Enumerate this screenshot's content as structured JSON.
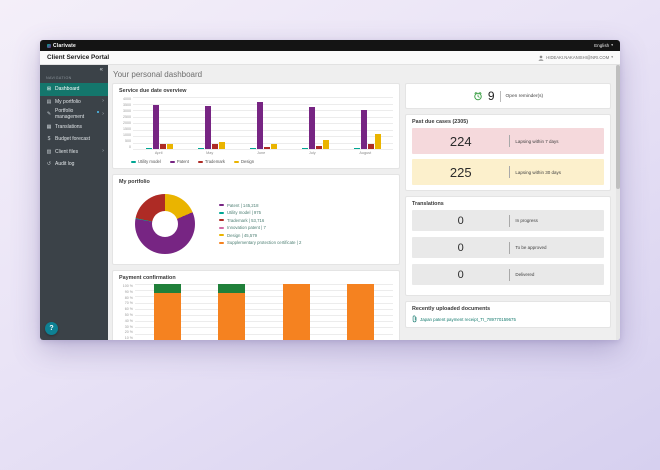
{
  "topbar": {
    "brand": "Clarivate",
    "language": "English"
  },
  "header": {
    "title": "Client Service Portal",
    "user_email": "HIDEAKI.NAKANISHI@NRI.COM"
  },
  "sidebar": {
    "section_label": "NAVIGATION",
    "collapse_icon": "«",
    "help_label": "?",
    "items": [
      {
        "label": "Dashboard",
        "icon": "dashboard-icon",
        "glyph": "⊞",
        "active": true,
        "chevron": false,
        "badge": false
      },
      {
        "label": "My portfolio",
        "icon": "portfolio-icon",
        "glyph": "▤",
        "active": false,
        "chevron": true,
        "badge": false
      },
      {
        "label": "Portfolio management",
        "icon": "management-icon",
        "glyph": "✎",
        "active": false,
        "chevron": true,
        "badge": true
      },
      {
        "label": "Translations",
        "icon": "translations-icon",
        "glyph": "▦",
        "active": false,
        "chevron": false,
        "badge": false
      },
      {
        "label": "Budget forecast",
        "icon": "budget-icon",
        "glyph": "$",
        "active": false,
        "chevron": false,
        "badge": false
      },
      {
        "label": "Client files",
        "icon": "files-icon",
        "glyph": "▧",
        "active": false,
        "chevron": true,
        "badge": false
      },
      {
        "label": "Audit log",
        "icon": "audit-icon",
        "glyph": "↺",
        "active": false,
        "chevron": false,
        "badge": false
      }
    ]
  },
  "main": {
    "page_title": "Your personal dashboard"
  },
  "right_panel": {
    "reminders": {
      "count": "9",
      "label": "Open reminder(s)"
    },
    "past_due": {
      "title": "Past due cases (2305)",
      "items": [
        {
          "value": "224",
          "label": "Lapsing within 7 days",
          "bg": "#f5d9dc"
        },
        {
          "value": "225",
          "label": "Lapsing within 30 days",
          "bg": "#fcf0cc"
        }
      ]
    },
    "translations": {
      "title": "Translations",
      "items": [
        {
          "value": "0",
          "label": "In progress",
          "bg": "#e9e9e9"
        },
        {
          "value": "0",
          "label": "To be approved",
          "bg": "#e9e9e9"
        },
        {
          "value": "0",
          "label": "Delivered",
          "bg": "#e9e9e9"
        }
      ]
    },
    "documents": {
      "title": "Recently uploaded documents",
      "link": "Japan patent payment receipt_TI_789770159675"
    }
  },
  "colors": {
    "brand_purple": "#772583",
    "teal": "#00a693",
    "red": "#ae2b25",
    "yellow": "#eab400",
    "orange": "#f58220",
    "green": "#20803a",
    "active_nav": "#14766c",
    "help_button": "#0e8194"
  },
  "chart_data": [
    {
      "type": "bar",
      "title": "Service due date overview",
      "categories": [
        "April",
        "May",
        "June",
        "July",
        "August"
      ],
      "series": [
        {
          "name": "Utility model",
          "color": "#00a693",
          "values": [
            50,
            50,
            50,
            50,
            50
          ]
        },
        {
          "name": "Patent",
          "color": "#772583",
          "values": [
            3400,
            3300,
            3650,
            3250,
            3000
          ]
        },
        {
          "name": "Trademark",
          "color": "#ae2b25",
          "values": [
            350,
            400,
            120,
            220,
            420
          ]
        },
        {
          "name": "Design",
          "color": "#eab400",
          "values": [
            380,
            550,
            380,
            680,
            1150
          ]
        }
      ],
      "ylim": [
        0,
        4000
      ],
      "ytick_step": 500,
      "grid": true,
      "legend_position": "bottom"
    },
    {
      "type": "pie",
      "donut": true,
      "title": "My portfolio",
      "slices": [
        {
          "label": "Patent",
          "value": 145218,
          "display": "Patent | 145,218",
          "color": "#772583"
        },
        {
          "label": "Utility model",
          "value": 975,
          "display": "Utility model | 975",
          "color": "#00a693"
        },
        {
          "label": "Trademark",
          "value": 53716,
          "display": "Trademark | 53,716",
          "color": "#ae2b25"
        },
        {
          "label": "Innovation patent",
          "value": 7,
          "display": "Innovation patent | 7",
          "color": "#d16ba5"
        },
        {
          "label": "Design",
          "value": 45579,
          "display": "Design | 45,579",
          "color": "#eab400"
        },
        {
          "label": "Supplementary protection certificate",
          "value": 2,
          "display": "Supplementary protection certificate | 2",
          "color": "#f58220"
        }
      ],
      "draw_order": [
        4,
        0,
        1,
        2,
        3,
        5
      ],
      "legend_position": "right"
    },
    {
      "type": "bar",
      "stacked": true,
      "title": "Payment confirmation",
      "categories": [
        "",
        "",
        "",
        ""
      ],
      "series": [
        {
          "name": "",
          "color": "#f58220",
          "values": [
            86,
            86,
            100,
            100
          ]
        },
        {
          "name": "",
          "color": "#20803a",
          "values": [
            14,
            14,
            0,
            0
          ]
        }
      ],
      "ylim": [
        0,
        100
      ],
      "yticks": [
        "100 %",
        "90 %",
        "80 %",
        "70 %",
        "60 %",
        "50 %",
        "40 %",
        "30 %",
        "20 %",
        "10 %",
        "0 %"
      ],
      "grid": true
    }
  ]
}
